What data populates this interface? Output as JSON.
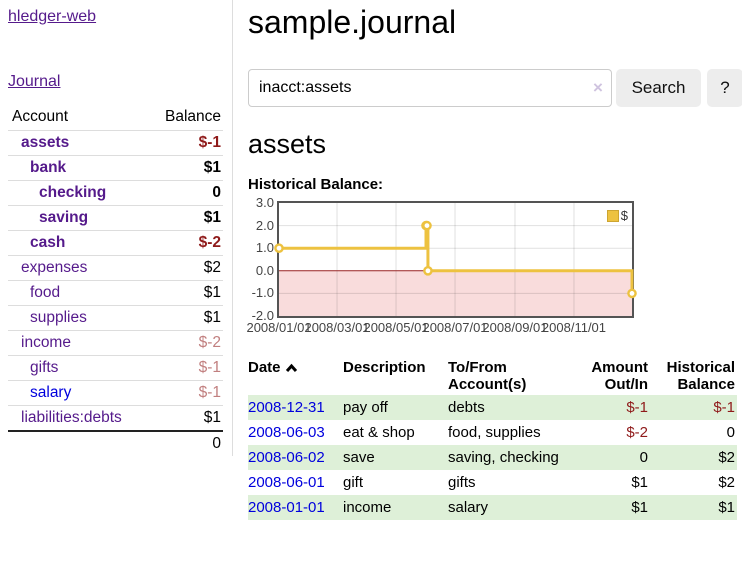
{
  "app": {
    "brand": "hledger-web",
    "nav_journal": "Journal"
  },
  "sidebar": {
    "col_account": "Account",
    "col_balance": "Balance",
    "accounts": [
      {
        "name": "assets",
        "depth": 1,
        "bold": true,
        "link": "purple",
        "balance": "$-1",
        "bal_style": "neg-strong"
      },
      {
        "name": "bank",
        "depth": 2,
        "bold": true,
        "link": "purple",
        "balance": "$1",
        "bal_style": ""
      },
      {
        "name": "checking",
        "depth": 3,
        "bold": true,
        "link": "purple",
        "balance": "0",
        "bal_style": ""
      },
      {
        "name": "saving",
        "depth": 3,
        "bold": true,
        "link": "purple",
        "balance": "$1",
        "bal_style": ""
      },
      {
        "name": "cash",
        "depth": 2,
        "bold": true,
        "link": "purple",
        "balance": "$-2",
        "bal_style": "neg-strong"
      },
      {
        "name": "expenses",
        "depth": 1,
        "bold": false,
        "link": "purple",
        "balance": "$2",
        "bal_style": ""
      },
      {
        "name": "food",
        "depth": 2,
        "bold": false,
        "link": "purple",
        "balance": "$1",
        "bal_style": ""
      },
      {
        "name": "supplies",
        "depth": 2,
        "bold": false,
        "link": "purple",
        "balance": "$1",
        "bal_style": ""
      },
      {
        "name": "income",
        "depth": 1,
        "bold": false,
        "link": "purple",
        "balance": "$-2",
        "bal_style": "neg-soft"
      },
      {
        "name": "gifts",
        "depth": 2,
        "bold": false,
        "link": "purple",
        "balance": "$-1",
        "bal_style": "neg-soft"
      },
      {
        "name": "salary",
        "depth": 2,
        "bold": false,
        "link": "blue",
        "balance": "$-1",
        "bal_style": "neg-soft"
      },
      {
        "name": "liabilities:debts",
        "depth": 1,
        "bold": false,
        "link": "purple",
        "balance": "$1",
        "bal_style": ""
      }
    ],
    "total": "0"
  },
  "header": {
    "title": "sample.journal"
  },
  "search": {
    "value": "inacct:assets",
    "clear_icon": "×",
    "search_label": "Search",
    "help_label": "?"
  },
  "account_page": {
    "title": "assets",
    "chart_heading": "Historical Balance:"
  },
  "chart_data": {
    "type": "line",
    "step": true,
    "title": "Historical Balance",
    "series": [
      {
        "name": "$",
        "color": "#EDC240",
        "points": [
          [
            "2008-01-01",
            1
          ],
          [
            "2008-06-01",
            2
          ],
          [
            "2008-06-02",
            2
          ],
          [
            "2008-06-03",
            0
          ],
          [
            "2008-12-31",
            -1
          ]
        ]
      }
    ],
    "x_range": [
      "2008-01-01",
      "2008-12-31"
    ],
    "ylim": [
      -2,
      3
    ],
    "yticks": [
      3.0,
      2.0,
      1.0,
      0.0,
      -1.0,
      -2.0
    ],
    "xticks": [
      "2008/01/01",
      "2008/03/01",
      "2008/05/01",
      "2008/07/01",
      "2008/09/01",
      "2008/11/01"
    ],
    "grid": true,
    "legend_position": "top-right",
    "legend_label": "$",
    "negative_region": {
      "fill": "#f9dcdc",
      "zero_line": "#992222"
    }
  },
  "register": {
    "columns": {
      "date": "Date",
      "description": "Description",
      "accounts_line1": "To/From",
      "accounts_line2": "Account(s)",
      "amount_line1": "Amount",
      "amount_line2": "Out/In",
      "balance_line1": "Historical",
      "balance_line2": "Balance"
    },
    "rows": [
      {
        "date": "2008-12-31",
        "description": "pay off",
        "accounts": "debts",
        "amount": "$-1",
        "amount_neg": true,
        "balance": "$-1",
        "balance_neg": true
      },
      {
        "date": "2008-06-03",
        "description": "eat & shop",
        "accounts": "food, supplies",
        "amount": "$-2",
        "amount_neg": true,
        "balance": "0",
        "balance_neg": false
      },
      {
        "date": "2008-06-02",
        "description": "save",
        "accounts": "saving, checking",
        "amount": "0",
        "amount_neg": false,
        "balance": "$2",
        "balance_neg": false
      },
      {
        "date": "2008-06-01",
        "description": "gift",
        "accounts": "gifts",
        "amount": "$1",
        "amount_neg": false,
        "balance": "$2",
        "balance_neg": false
      },
      {
        "date": "2008-01-01",
        "description": "income",
        "accounts": "salary",
        "amount": "$1",
        "amount_neg": false,
        "balance": "$1",
        "balance_neg": false
      }
    ]
  }
}
